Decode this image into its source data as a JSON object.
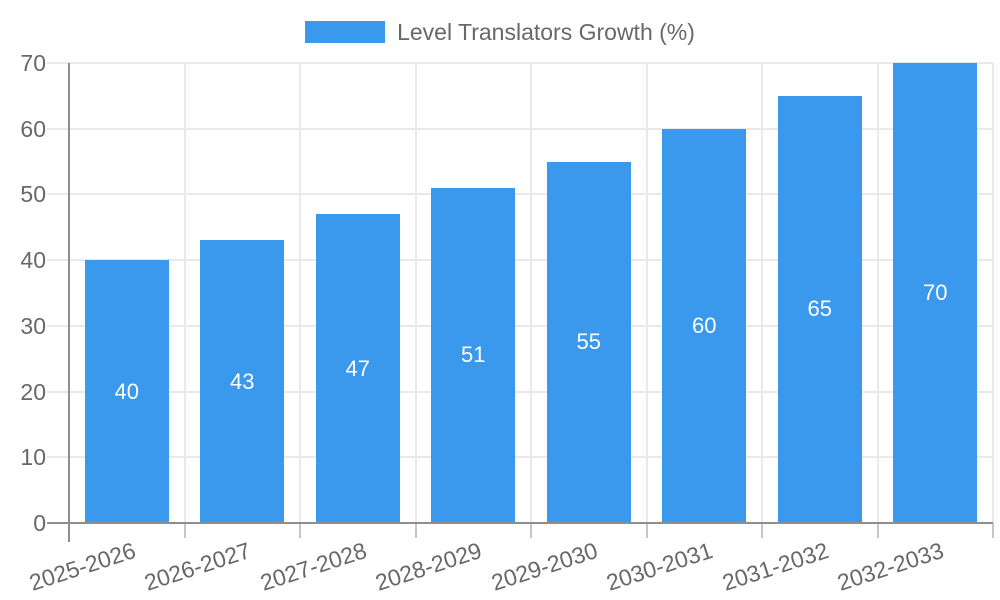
{
  "chart_data": {
    "type": "bar",
    "title": "",
    "legend_label": "Level Translators Growth (%)",
    "legend_position": "top",
    "categories": [
      "2025-2026",
      "2026-2027",
      "2027-2028",
      "2028-2029",
      "2029-2030",
      "2030-2031",
      "2031-2032",
      "2032-2033"
    ],
    "values": [
      40,
      43,
      47,
      51,
      55,
      60,
      65,
      70
    ],
    "xlabel": "",
    "ylabel": "",
    "ylim": [
      0,
      70
    ],
    "yticks": [
      0,
      10,
      20,
      30,
      40,
      50,
      60,
      70
    ],
    "grid": true,
    "bar_value_labels": true,
    "colors": {
      "bar": "#3a99ec",
      "grid": "#e9e9e9",
      "tick": "#c6c6c6",
      "axis": "#8e8e8e",
      "text": "#686868",
      "bar_label": "#ffffff",
      "background": "#ffffff"
    }
  }
}
